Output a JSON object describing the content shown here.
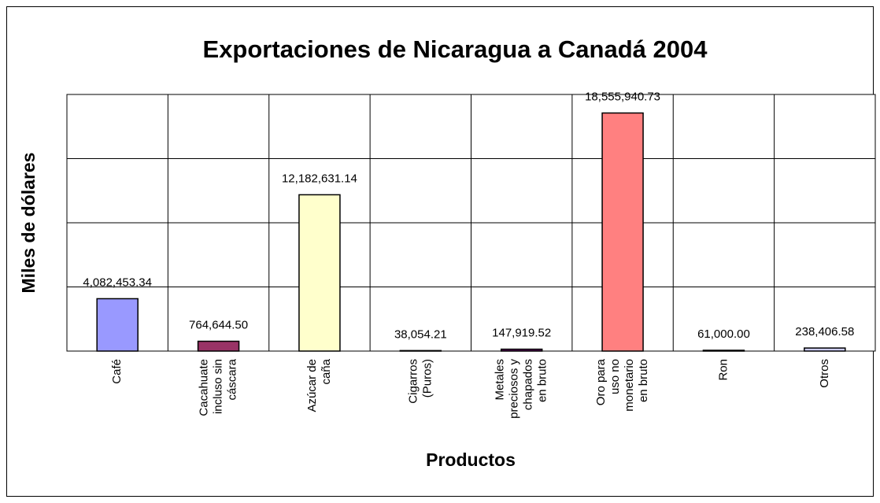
{
  "chart_data": {
    "type": "bar",
    "title": "Exportaciones de Nicaragua a Canadá 2004",
    "y_label": "Miles de dólares",
    "x_label": "Productos",
    "categories": [
      "Café",
      "Cacahuate\nincluso sin\ncáscara",
      "Azúcar de\ncaña",
      "Cigarros\n(Puros)",
      "Metales\npreciosos y\nchapados\nen bruto",
      "Oro para\nuso no\nmonetario\nen bruto",
      "Ron",
      "Otros"
    ],
    "values": [
      4082453.34,
      764644.5,
      12182631.14,
      38054.21,
      147919.52,
      18555940.73,
      61000.0,
      238406.58
    ],
    "value_labels": [
      "4,082,453.34",
      "764,644.50",
      "12,182,631.14",
      "38,054.21",
      "147,919.52",
      "18,555,940.73",
      "61,000.00",
      "238,406.58"
    ],
    "colors": [
      "#9999ff",
      "#993366",
      "#ffffcc",
      "#ccffff",
      "#660066",
      "#ff8080",
      "#0066cc",
      "#ccccff"
    ],
    "ylim": [
      0,
      20000000
    ],
    "yticks": [
      0,
      5000000,
      10000000,
      15000000,
      20000000
    ],
    "grid": true
  }
}
